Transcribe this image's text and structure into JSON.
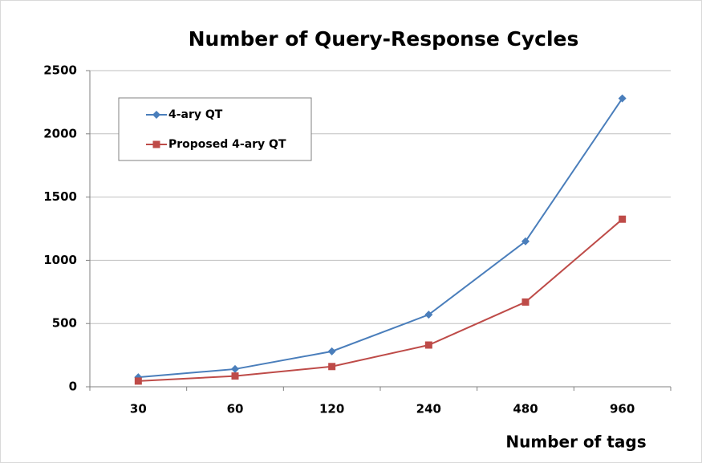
{
  "chart_data": {
    "type": "line",
    "title": "Number of Query-Response Cycles",
    "x_label": "Number of tags",
    "categories": [
      "30",
      "60",
      "120",
      "240",
      "480",
      "960"
    ],
    "series": [
      {
        "name": "4-ary QT",
        "color": "#4a7ebb",
        "marker": "diamond",
        "values": [
          75,
          140,
          280,
          570,
          1150,
          2280
        ]
      },
      {
        "name": "Proposed 4-ary QT",
        "color": "#be4b48",
        "marker": "square",
        "values": [
          45,
          85,
          160,
          330,
          670,
          1325
        ]
      }
    ],
    "ylim": [
      0,
      2500
    ],
    "yticks": [
      0,
      500,
      1000,
      1500,
      2000,
      2500
    ],
    "grid": true,
    "legend": "upper left"
  }
}
